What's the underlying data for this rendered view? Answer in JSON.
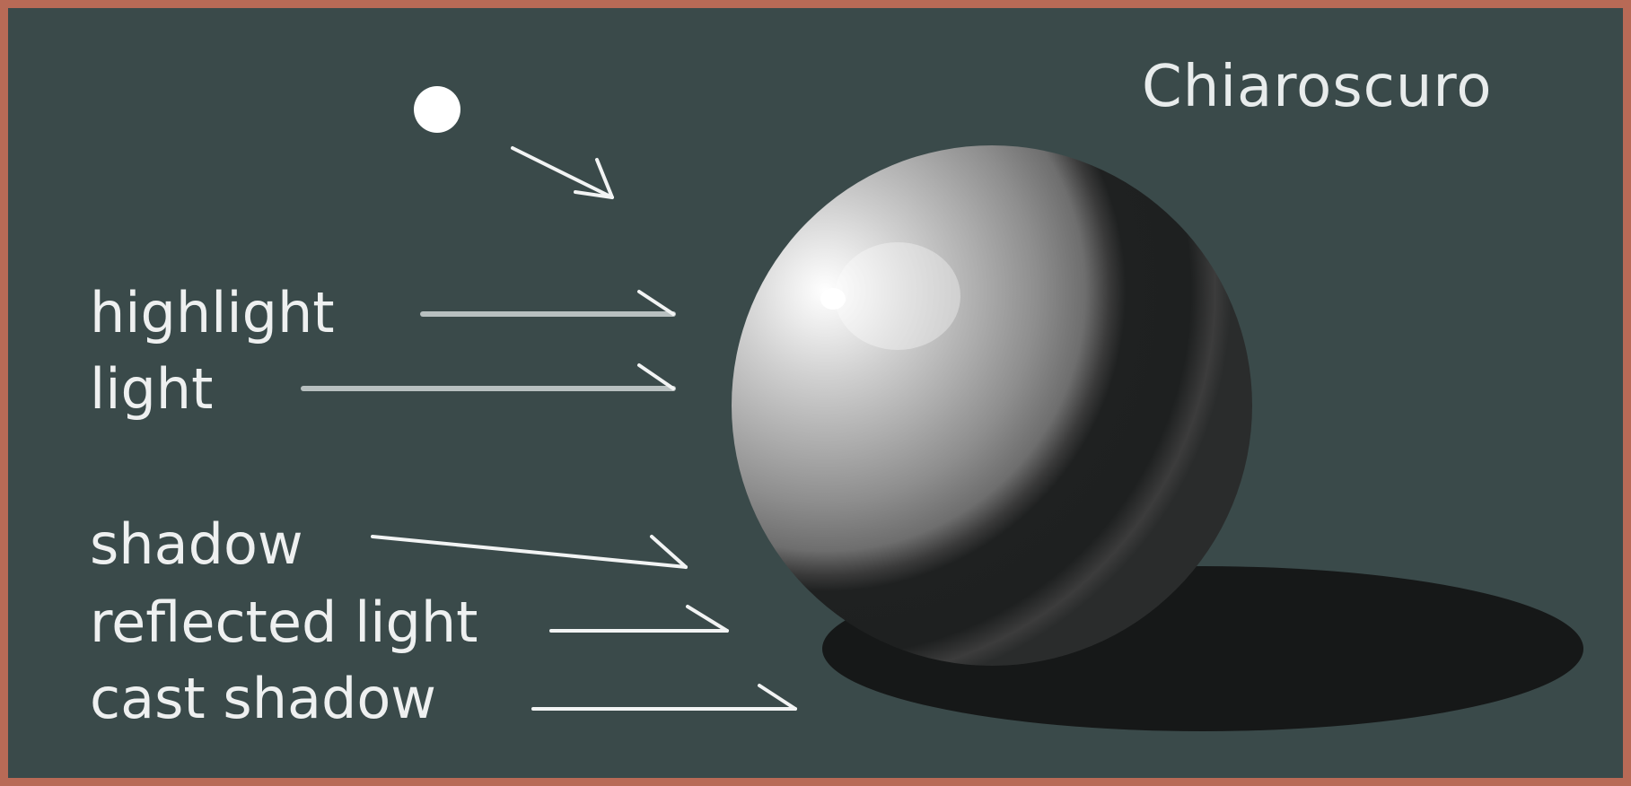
{
  "diagram": {
    "title": "Chiaroscuro",
    "labels": [
      {
        "id": "highlight",
        "text": "highlight"
      },
      {
        "id": "light",
        "text": "light"
      },
      {
        "id": "shadow",
        "text": "shadow"
      },
      {
        "id": "reflected-light",
        "text": "reflected light"
      },
      {
        "id": "cast-shadow",
        "text": "cast shadow"
      }
    ],
    "colors": {
      "background": "#3a4a4a",
      "frame": "#b86a56",
      "text": "#eef0f0",
      "cast_shadow": "#161818",
      "sphere_dark": "#1e2020",
      "light_source": "#ffffff"
    }
  }
}
